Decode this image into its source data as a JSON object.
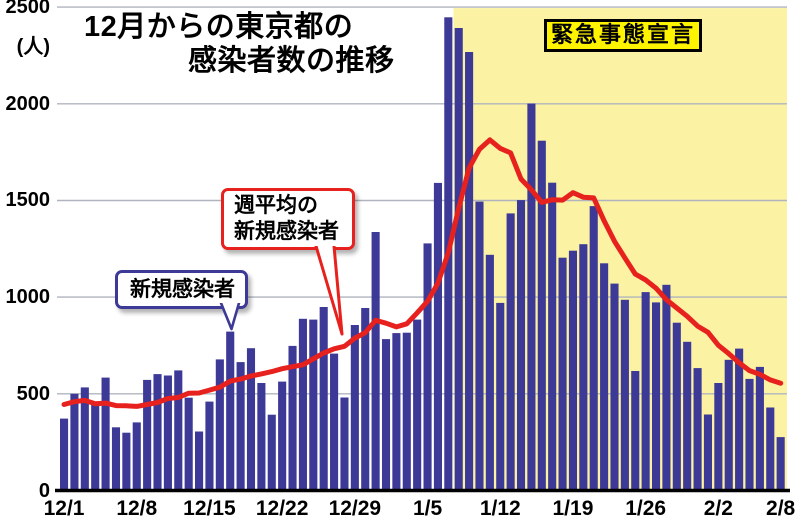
{
  "title": {
    "line1": "12月からの東京都の",
    "line2": "感染者数の推移"
  },
  "y_axis": {
    "unit": "(人)",
    "tick_labels": [
      "0",
      "500",
      "1000",
      "1500",
      "2000",
      "2500"
    ]
  },
  "callouts": {
    "daily": {
      "label": "新規感染者",
      "border_color": "#3d3996"
    },
    "average": {
      "label_line1": "週平均の",
      "label_line2": "新規感染者",
      "border_color": "#e7211d"
    },
    "emergency": {
      "label": "緊急事態宣言",
      "bg": "#fef400",
      "border_color": "#000000"
    }
  },
  "chart_data": {
    "type": "bar",
    "title": "12月からの東京都の感染者数の推移",
    "unit": "人",
    "ylim": [
      0,
      2500
    ],
    "y_ticks": [
      0,
      500,
      1000,
      1500,
      2000,
      2500
    ],
    "grid": true,
    "grid_color": "#b0b4bf",
    "background": "#ffffff",
    "x_tick_labels": [
      "12/1",
      "12/8",
      "12/15",
      "12/22",
      "12/29",
      "1/5",
      "1/12",
      "1/19",
      "1/26",
      "2/2",
      "2/8"
    ],
    "x_tick_indices": [
      0,
      7,
      14,
      21,
      28,
      35,
      42,
      49,
      56,
      63,
      69
    ],
    "dates": [
      "12/1",
      "12/2",
      "12/3",
      "12/4",
      "12/5",
      "12/6",
      "12/7",
      "12/8",
      "12/9",
      "12/10",
      "12/11",
      "12/12",
      "12/13",
      "12/14",
      "12/15",
      "12/16",
      "12/17",
      "12/18",
      "12/19",
      "12/20",
      "12/21",
      "12/22",
      "12/23",
      "12/24",
      "12/25",
      "12/26",
      "12/27",
      "12/28",
      "12/29",
      "12/30",
      "12/31",
      "1/1",
      "1/2",
      "1/3",
      "1/4",
      "1/5",
      "1/6",
      "1/7",
      "1/8",
      "1/9",
      "1/10",
      "1/11",
      "1/12",
      "1/13",
      "1/14",
      "1/15",
      "1/16",
      "1/17",
      "1/18",
      "1/19",
      "1/20",
      "1/21",
      "1/22",
      "1/23",
      "1/24",
      "1/25",
      "1/26",
      "1/27",
      "1/28",
      "1/29",
      "1/30",
      "1/31",
      "2/1",
      "2/2",
      "2/3",
      "2/4",
      "2/5",
      "2/6",
      "2/7",
      "2/8"
    ],
    "series": [
      {
        "name": "新規感染者",
        "type": "bar",
        "color": "#3d3996",
        "values": [
          372,
          500,
          533,
          449,
          584,
          327,
          299,
          352,
          572,
          602,
          595,
          621,
          480,
          305,
          460,
          678,
          822,
          664,
          736,
          556,
          392,
          563,
          748,
          888,
          884,
          949,
          708,
          481,
          856,
          944,
          1337,
          783,
          814,
          816,
          884,
          1278,
          1591,
          2447,
          2392,
          2268,
          1494,
          1219,
          970,
          1433,
          1502,
          2001,
          1809,
          1592,
          1204,
          1240,
          1274,
          1471,
          1175,
          1070,
          986,
          618,
          1026,
          973,
          1064,
          868,
          769,
          633,
          393,
          556,
          676,
          734,
          577,
          639,
          429,
          276
        ]
      },
      {
        "name": "週平均の新規感染者",
        "type": "line",
        "color": "#e7211d",
        "values": [
          445,
          459,
          466,
          449,
          452,
          439,
          438,
          435,
          445,
          455,
          476,
          481,
          503,
          504,
          519,
          534,
          566,
          576,
          592,
          603,
          615,
          630,
          640,
          650,
          681,
          711,
          733,
          746,
          788,
          816,
          880,
          865,
          846,
          862,
          919,
          979,
          1072,
          1230,
          1460,
          1668,
          1765,
          1813,
          1769,
          1746,
          1611,
          1555,
          1490,
          1504,
          1502,
          1540,
          1517,
          1513,
          1395,
          1289,
          1203,
          1119,
          1089,
          1046,
          987,
          944,
          901,
          850,
          818,
          751,
          708,
          661,
          620,
          601,
          572,
          555
        ]
      }
    ],
    "annotation_band": {
      "label": "緊急事態宣言",
      "start_date": "1/8",
      "start_index": 38,
      "color": "#fbf3a3"
    },
    "legend_position": "callouts-on-plot"
  }
}
